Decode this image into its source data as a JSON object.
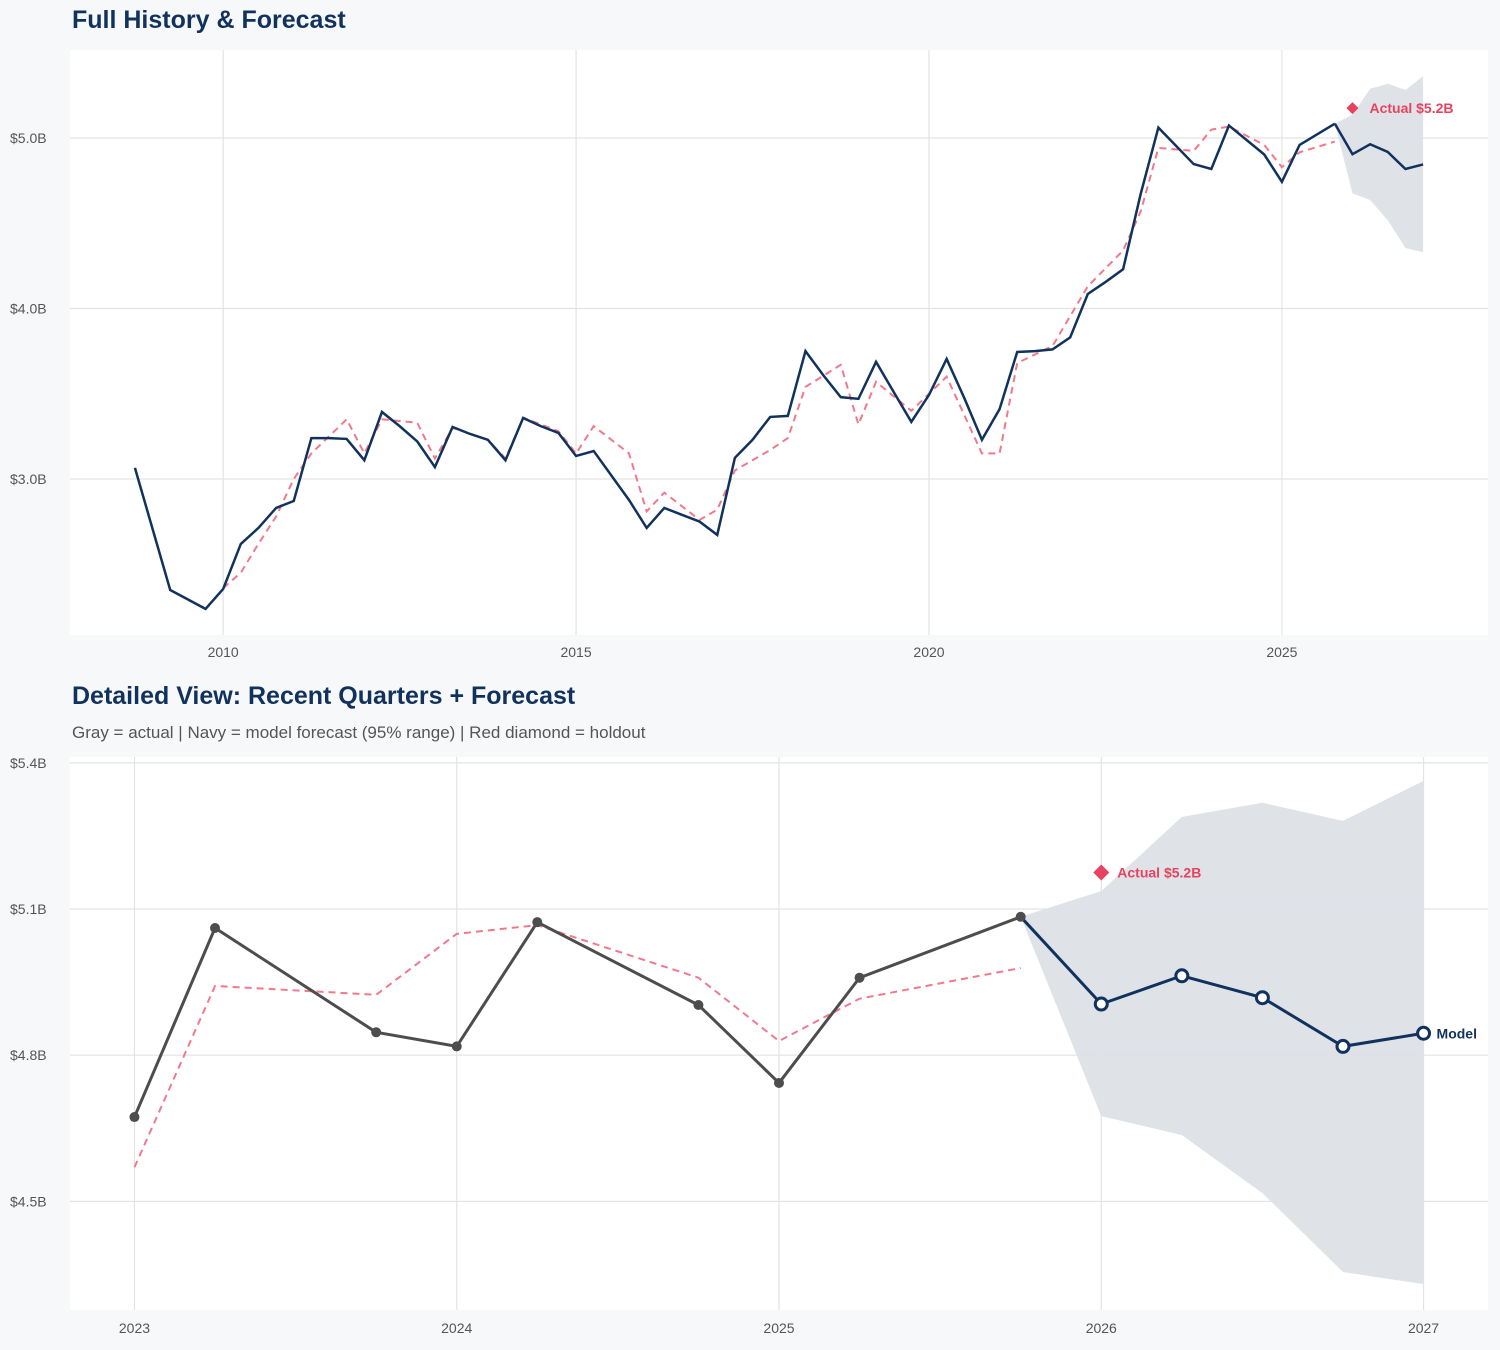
{
  "colors": {
    "actual_top": "#12325e",
    "actual_bottom": "#4d4d4d",
    "forecast": "#12325e",
    "fitted": "#f07a8c",
    "holdout": "#e8425f",
    "band": "#dde1e7"
  },
  "chart_data": [
    {
      "type": "line",
      "title": "Full History & Forecast",
      "xlim": [
        2007.83,
        2027.92
      ],
      "ylim": [
        2.085,
        5.516
      ],
      "x_ticks": [
        2010,
        2015,
        2020,
        2025
      ],
      "x_tick_labels": [
        "2010",
        "2015",
        "2020",
        "2025"
      ],
      "y_ticks": [
        3.0,
        4.0,
        5.0
      ],
      "y_tick_labels": [
        "$3.0B",
        "$4.0B",
        "$5.0B"
      ],
      "grid": true,
      "series": [
        {
          "role": "actual",
          "x": [
            2008.75,
            2009.25,
            2009.75,
            2010.0,
            2010.25,
            2010.5,
            2010.75,
            2011.0,
            2011.25,
            2011.5,
            2011.75,
            2012.0,
            2012.25,
            2012.5,
            2012.75,
            2013.0,
            2013.25,
            2013.5,
            2013.75,
            2014.0,
            2014.25,
            2014.5,
            2014.75,
            2015.0,
            2015.25,
            2015.75,
            2016.0,
            2016.25,
            2016.5,
            2016.75,
            2017.0,
            2017.25,
            2017.5,
            2017.75,
            2018.0,
            2018.25,
            2018.5,
            2018.75,
            2019.0,
            2019.25,
            2019.5,
            2019.75,
            2020.0,
            2020.25,
            2020.5,
            2020.75,
            2021.0,
            2021.25,
            2021.5,
            2021.75,
            2022.0,
            2022.25,
            2022.5,
            2022.75,
            2023.0,
            2023.25,
            2023.75,
            2024.0,
            2024.25,
            2024.75,
            2025.0,
            2025.25,
            2025.75
          ],
          "y": [
            3.065,
            2.349,
            2.238,
            2.355,
            2.619,
            2.713,
            2.83,
            2.871,
            3.24,
            3.24,
            3.235,
            3.11,
            3.393,
            3.31,
            3.22,
            3.07,
            3.305,
            3.264,
            3.23,
            3.11,
            3.358,
            3.31,
            3.27,
            3.135,
            3.164,
            2.877,
            2.713,
            2.83,
            2.79,
            2.75,
            2.672,
            3.124,
            3.23,
            3.364,
            3.37,
            3.75,
            3.61,
            3.48,
            3.47,
            3.687,
            3.51,
            3.335,
            3.493,
            3.704,
            3.475,
            3.23,
            3.41,
            3.745,
            3.75,
            3.76,
            3.83,
            4.085,
            4.155,
            4.23,
            4.673,
            5.061,
            4.847,
            4.818,
            5.073,
            4.903,
            4.743,
            4.959,
            5.084
          ]
        },
        {
          "role": "fitted",
          "x": [
            2010.0,
            2010.25,
            2010.5,
            2010.75,
            2011.0,
            2011.25,
            2011.75,
            2012.0,
            2012.25,
            2012.75,
            2013.0,
            2013.25,
            2013.75,
            2014.0,
            2014.25,
            2014.75,
            2015.0,
            2015.25,
            2015.75,
            2016.0,
            2016.25,
            2016.75,
            2017.0,
            2017.25,
            2017.75,
            2018.0,
            2018.25,
            2018.75,
            2019.0,
            2019.25,
            2019.75,
            2020.25,
            2020.75,
            2021.0,
            2021.25,
            2021.75,
            2022.25,
            2022.75,
            2023.0,
            2023.25,
            2023.75,
            2024.0,
            2024.25,
            2024.75,
            2025.0,
            2025.25,
            2025.75
          ],
          "y": [
            2.36,
            2.45,
            2.62,
            2.78,
            3.0,
            3.15,
            3.35,
            3.15,
            3.35,
            3.33,
            3.12,
            3.3,
            3.23,
            3.12,
            3.36,
            3.28,
            3.15,
            3.31,
            3.15,
            2.81,
            2.92,
            2.76,
            2.82,
            3.05,
            3.17,
            3.24,
            3.54,
            3.67,
            3.32,
            3.57,
            3.4,
            3.6,
            3.15,
            3.15,
            3.68,
            3.78,
            4.13,
            4.34,
            4.57,
            4.942,
            4.924,
            5.049,
            5.067,
            4.959,
            4.829,
            4.916,
            4.979
          ]
        },
        {
          "role": "forecast",
          "x": [
            2025.75,
            2026.0,
            2026.25,
            2026.5,
            2026.75,
            2027.0
          ],
          "y": [
            5.084,
            4.905,
            4.963,
            4.918,
            4.818,
            4.845
          ],
          "upper": [
            5.084,
            5.137,
            5.289,
            5.318,
            5.281,
            5.363
          ],
          "lower": [
            5.084,
            4.675,
            4.636,
            4.517,
            4.355,
            4.33
          ]
        },
        {
          "role": "holdout",
          "x": [
            2026.0
          ],
          "y": [
            5.175
          ]
        }
      ],
      "annotations": [
        {
          "text": "Actual $5.2B",
          "x": 2026.0,
          "y": 5.175
        }
      ]
    },
    {
      "type": "line",
      "title": "Detailed View: Recent Quarters + Forecast",
      "subtitle": "Gray = actual  |  Navy = model forecast (95% range)  |  Red diamond = holdout",
      "xlim": [
        2022.8,
        2027.2
      ],
      "ylim": [
        4.277,
        5.412
      ],
      "x_ticks": [
        2023,
        2024,
        2025,
        2026,
        2027
      ],
      "x_tick_labels": [
        "2023",
        "2024",
        "2025",
        "2026",
        "2027"
      ],
      "y_ticks": [
        4.5,
        4.8,
        5.1,
        5.4
      ],
      "y_tick_labels": [
        "$4.5B",
        "$4.8B",
        "$5.1B",
        "$5.4B"
      ],
      "grid": true,
      "series": [
        {
          "role": "actual",
          "x": [
            2023.0,
            2023.25,
            2023.75,
            2024.0,
            2024.25,
            2024.75,
            2025.0,
            2025.25,
            2025.75
          ],
          "y": [
            4.673,
            5.061,
            4.847,
            4.818,
            5.073,
            4.903,
            4.743,
            4.959,
            5.084
          ]
        },
        {
          "role": "fitted",
          "x": [
            2023.0,
            2023.25,
            2023.75,
            2024.0,
            2024.25,
            2024.75,
            2025.0,
            2025.25,
            2025.75
          ],
          "y": [
            4.57,
            4.942,
            4.924,
            5.049,
            5.067,
            4.959,
            4.829,
            4.916,
            4.979
          ]
        },
        {
          "role": "forecast",
          "x": [
            2025.75,
            2026.0,
            2026.25,
            2026.5,
            2026.75,
            2027.0
          ],
          "y": [
            5.084,
            4.905,
            4.963,
            4.918,
            4.818,
            4.845
          ],
          "upper": [
            5.084,
            5.137,
            5.289,
            5.318,
            5.281,
            5.363
          ],
          "lower": [
            5.084,
            4.675,
            4.636,
            4.517,
            4.355,
            4.33
          ]
        },
        {
          "role": "holdout",
          "x": [
            2026.0
          ],
          "y": [
            5.175
          ]
        }
      ],
      "annotations": [
        {
          "text": "Actual $5.2B",
          "x": 2026.0,
          "y": 5.175
        },
        {
          "text": "Model",
          "x": 2027.0,
          "y": 4.845
        }
      ]
    }
  ]
}
